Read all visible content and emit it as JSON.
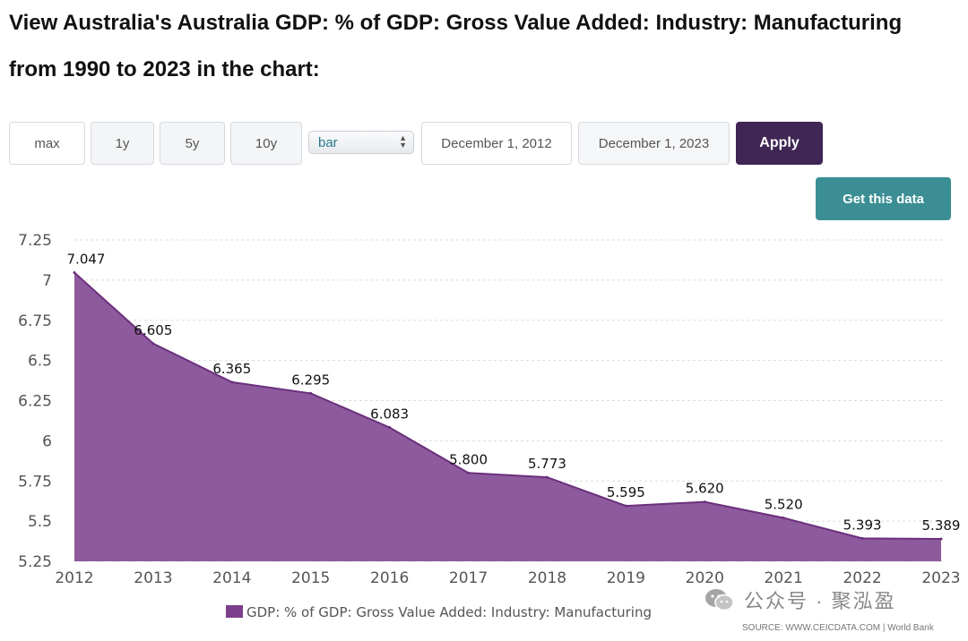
{
  "page": {
    "title_line1": "View Australia's Australia GDP: % of GDP: Gross Value Added: Industry: Manufacturing",
    "title_line2": "from 1990 to 2023 in the chart:"
  },
  "controls": {
    "range_buttons": [
      "max",
      "1y",
      "5y",
      "10y"
    ],
    "chart_type_selected": "bar",
    "date_from": "December 1, 2012",
    "date_to": "December 1, 2023",
    "apply_label": "Apply",
    "get_data_label": "Get this data"
  },
  "colors": {
    "area_fill": "#8d5b9d",
    "area_line": "#6a2f7d",
    "apply_bg": "#3f2654",
    "get_data_bg": "#3a8e94",
    "legend_swatch": "#7b3f8c"
  },
  "chart_data": {
    "type": "area",
    "x": [
      "2012",
      "2013",
      "2014",
      "2015",
      "2016",
      "2017",
      "2018",
      "2019",
      "2020",
      "2021",
      "2022",
      "2023"
    ],
    "series": [
      {
        "name": "GDP: % of GDP: Gross Value Added: Industry: Manufacturing",
        "values": [
          7.047,
          6.605,
          6.365,
          6.295,
          6.083,
          5.8,
          5.773,
          5.595,
          5.62,
          5.52,
          5.393,
          5.389
        ],
        "labels": [
          "7.047",
          "6.605",
          "6.365",
          "6.295",
          "6.083",
          "5.800",
          "5.773",
          "5.595",
          "5.620",
          "5.520",
          "5.393",
          "5.389"
        ]
      }
    ],
    "yticks": [
      "5.25",
      "5.5",
      "5.75",
      "6",
      "6.25",
      "6.5",
      "6.75",
      "7",
      "7.25"
    ],
    "ylim": [
      5.25,
      7.25
    ],
    "grid": true,
    "legend_position": "bottom"
  },
  "footer": {
    "watermark": "公众号 · 聚泓盈",
    "source": "SOURCE: WWW.CEICDATA.COM | World Bank"
  }
}
